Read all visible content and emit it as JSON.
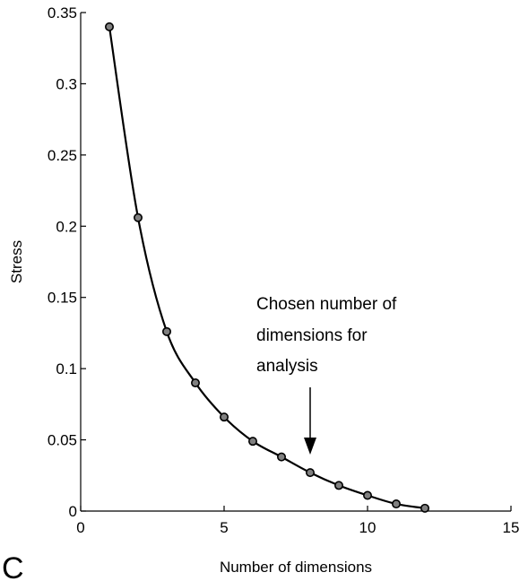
{
  "chart_data": {
    "type": "line",
    "title": "",
    "xlabel": "Number of dimensions",
    "ylabel": "Stress",
    "xlim": [
      0,
      15
    ],
    "ylim": [
      0,
      0.35
    ],
    "xticks": [
      0,
      5,
      10,
      15
    ],
    "xtick_labels": [
      "0",
      "5",
      "10",
      "15"
    ],
    "yticks": [
      0,
      0.05,
      0.1,
      0.15,
      0.2,
      0.25,
      0.3,
      0.35
    ],
    "ytick_labels": [
      "0",
      "0.05",
      "0.1",
      "0.15",
      "0.2",
      "0.25",
      "0.3",
      "0.35"
    ],
    "grid": false,
    "series": [
      {
        "x": [
          1,
          2,
          3,
          4,
          5,
          6,
          7,
          8,
          9,
          10,
          11,
          12
        ],
        "values": [
          0.34,
          0.206,
          0.126,
          0.09,
          0.066,
          0.049,
          0.038,
          0.027,
          0.018,
          0.011,
          0.005,
          0.002
        ],
        "color": "#000000",
        "marker": "circle"
      }
    ],
    "annotation": {
      "lines": [
        "Chosen number of",
        "dimensions for",
        "analysis"
      ],
      "arrow_to_x": 8
    }
  },
  "panel_label": "C"
}
